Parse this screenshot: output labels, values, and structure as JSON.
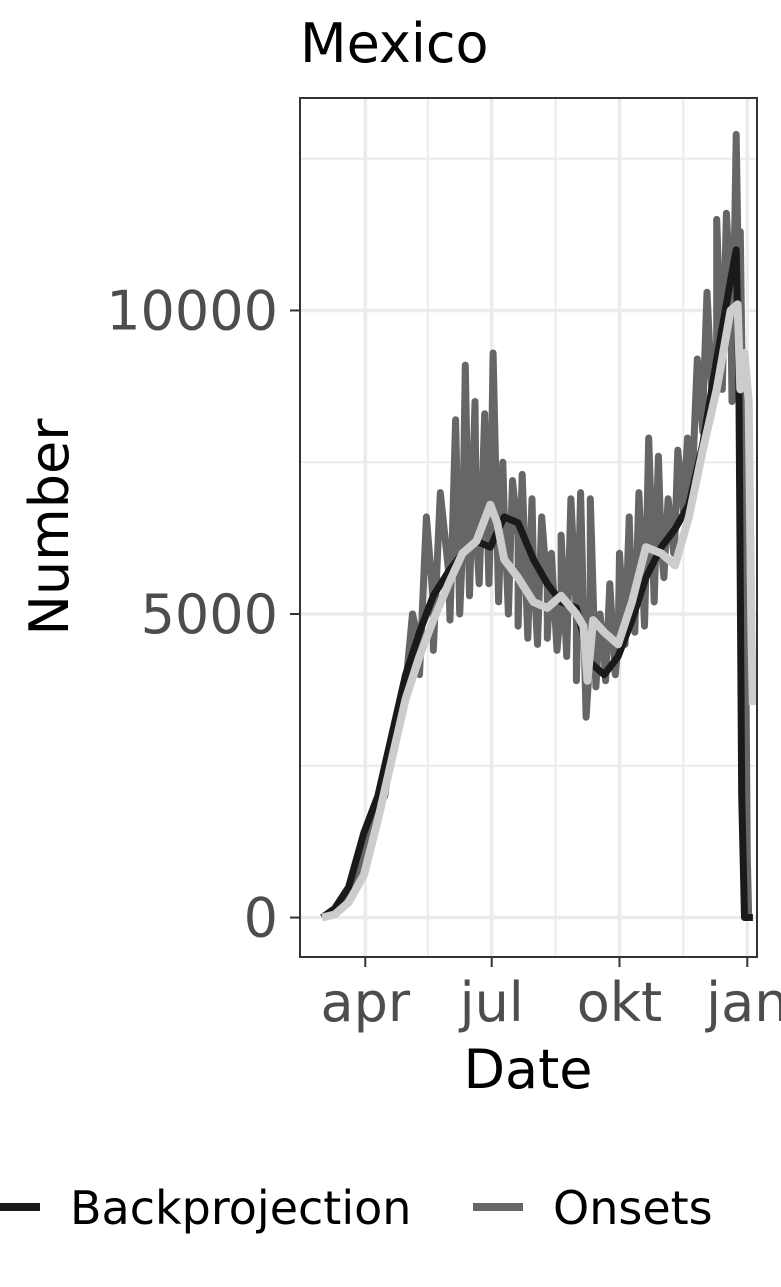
{
  "chart_data": {
    "type": "line",
    "title": "Mexico",
    "xlabel": "Date",
    "ylabel": "Number",
    "x_ticks": [
      {
        "label": "apr",
        "date": "2020-04-01"
      },
      {
        "label": "jul",
        "date": "2020-07-01"
      },
      {
        "label": "okt",
        "date": "2020-10-01"
      },
      {
        "label": "jan",
        "date": "2021-01-01"
      }
    ],
    "xlim": [
      "2020-02-14",
      "2021-01-08"
    ],
    "y_ticks": [
      {
        "label": "0",
        "value": 0
      },
      {
        "label": "5000",
        "value": 5000
      },
      {
        "label": "10000",
        "value": 10000
      }
    ],
    "ylim": [
      -650,
      13500
    ],
    "grid": true,
    "legend_position": "bottom",
    "series": [
      {
        "name": "Backprojection",
        "color": "#1a1a1a",
        "points": [
          [
            "2020-03-01",
            0
          ],
          [
            "2020-03-10",
            150
          ],
          [
            "2020-03-20",
            500
          ],
          [
            "2020-03-31",
            1400
          ],
          [
            "2020-04-10",
            2000
          ],
          [
            "2020-04-20",
            3000
          ],
          [
            "2020-04-30",
            4000
          ],
          [
            "2020-05-10",
            4700
          ],
          [
            "2020-05-20",
            5300
          ],
          [
            "2020-05-31",
            5700
          ],
          [
            "2020-06-10",
            6000
          ],
          [
            "2020-06-20",
            6200
          ],
          [
            "2020-06-30",
            6100
          ],
          [
            "2020-07-10",
            6600
          ],
          [
            "2020-07-20",
            6500
          ],
          [
            "2020-07-31",
            5900
          ],
          [
            "2020-08-10",
            5500
          ],
          [
            "2020-08-20",
            5200
          ],
          [
            "2020-08-31",
            5100
          ],
          [
            "2020-09-10",
            4200
          ],
          [
            "2020-09-20",
            4000
          ],
          [
            "2020-09-30",
            4300
          ],
          [
            "2020-10-10",
            4900
          ],
          [
            "2020-10-20",
            5600
          ],
          [
            "2020-10-31",
            6100
          ],
          [
            "2020-11-10",
            6400
          ],
          [
            "2020-11-20",
            6800
          ],
          [
            "2020-11-30",
            7800
          ],
          [
            "2020-12-10",
            9200
          ],
          [
            "2020-12-20",
            10500
          ],
          [
            "2020-12-24",
            11000
          ],
          [
            "2020-12-26",
            8800
          ],
          [
            "2020-12-28",
            2000
          ],
          [
            "2020-12-30",
            0
          ],
          [
            "2021-01-05",
            0
          ]
        ]
      },
      {
        "name": "Onsets",
        "color": "#666666",
        "points": [
          [
            "2020-03-01",
            0
          ],
          [
            "2020-03-10",
            100
          ],
          [
            "2020-03-20",
            350
          ],
          [
            "2020-03-31",
            1000
          ],
          [
            "2020-04-10",
            1800
          ],
          [
            "2020-04-20",
            2800
          ],
          [
            "2020-04-30",
            3800
          ],
          [
            "2020-05-10",
            4500
          ],
          [
            "2020-05-20",
            5200
          ],
          [
            "2020-05-31",
            5700
          ],
          [
            "2020-06-10",
            6100
          ],
          [
            "2020-06-20",
            6300
          ],
          [
            "2020-06-30",
            6300
          ],
          [
            "2020-07-10",
            6700
          ],
          [
            "2020-07-20",
            6300
          ],
          [
            "2020-07-31",
            5800
          ],
          [
            "2020-08-10",
            5400
          ],
          [
            "2020-08-20",
            5200
          ],
          [
            "2020-08-31",
            5000
          ],
          [
            "2020-09-10",
            4400
          ],
          [
            "2020-09-20",
            4300
          ],
          [
            "2020-09-30",
            4500
          ],
          [
            "2020-10-10",
            5000
          ],
          [
            "2020-10-20",
            5700
          ],
          [
            "2020-10-31",
            6100
          ],
          [
            "2020-11-10",
            6300
          ],
          [
            "2020-11-20",
            6900
          ],
          [
            "2020-11-30",
            8000
          ],
          [
            "2020-12-10",
            9500
          ],
          [
            "2020-12-20",
            10300
          ],
          [
            "2020-12-26",
            10000
          ],
          [
            "2020-12-28",
            9500
          ],
          [
            "2020-12-30",
            7000
          ],
          [
            "2021-01-01",
            1000
          ],
          [
            "2021-01-02",
            0
          ],
          [
            "2021-01-05",
            0
          ]
        ],
        "peaks": [
          [
            "2020-04-15",
            2000
          ],
          [
            "2020-05-05",
            5000
          ],
          [
            "2020-05-15",
            6600
          ],
          [
            "2020-05-25",
            7000
          ],
          [
            "2020-06-05",
            8200
          ],
          [
            "2020-06-12",
            9100
          ],
          [
            "2020-06-19",
            8500
          ],
          [
            "2020-06-26",
            8300
          ],
          [
            "2020-07-02",
            9300
          ],
          [
            "2020-07-09",
            7500
          ],
          [
            "2020-07-16",
            7200
          ],
          [
            "2020-07-23",
            7300
          ],
          [
            "2020-07-30",
            6900
          ],
          [
            "2020-08-06",
            6600
          ],
          [
            "2020-08-13",
            6000
          ],
          [
            "2020-08-20",
            6300
          ],
          [
            "2020-08-27",
            6900
          ],
          [
            "2020-09-03",
            7000
          ],
          [
            "2020-09-10",
            6900
          ],
          [
            "2020-09-17",
            5000
          ],
          [
            "2020-09-24",
            5500
          ],
          [
            "2020-10-01",
            6000
          ],
          [
            "2020-10-08",
            6600
          ],
          [
            "2020-10-15",
            7000
          ],
          [
            "2020-10-22",
            7900
          ],
          [
            "2020-10-29",
            7600
          ],
          [
            "2020-11-05",
            6900
          ],
          [
            "2020-11-12",
            7700
          ],
          [
            "2020-11-19",
            7900
          ],
          [
            "2020-11-26",
            9200
          ],
          [
            "2020-12-03",
            10300
          ],
          [
            "2020-12-10",
            11500
          ],
          [
            "2020-12-17",
            11600
          ],
          [
            "2020-12-24",
            12900
          ],
          [
            "2020-12-27",
            11300
          ]
        ],
        "troughs": [
          [
            "2020-04-20",
            2600
          ],
          [
            "2020-05-10",
            4000
          ],
          [
            "2020-05-20",
            4400
          ],
          [
            "2020-06-01",
            4900
          ],
          [
            "2020-06-08",
            5000
          ],
          [
            "2020-06-15",
            5300
          ],
          [
            "2020-06-22",
            5500
          ],
          [
            "2020-06-29",
            5500
          ],
          [
            "2020-07-06",
            5200
          ],
          [
            "2020-07-13",
            5000
          ],
          [
            "2020-07-20",
            4800
          ],
          [
            "2020-07-27",
            4600
          ],
          [
            "2020-08-03",
            4500
          ],
          [
            "2020-08-10",
            4600
          ],
          [
            "2020-08-17",
            4400
          ],
          [
            "2020-08-24",
            4300
          ],
          [
            "2020-08-31",
            3900
          ],
          [
            "2020-09-07",
            3300
          ],
          [
            "2020-09-14",
            3800
          ],
          [
            "2020-09-21",
            3900
          ],
          [
            "2020-09-28",
            4000
          ],
          [
            "2020-10-05",
            4500
          ],
          [
            "2020-10-12",
            4700
          ],
          [
            "2020-10-19",
            4800
          ],
          [
            "2020-10-26",
            5200
          ],
          [
            "2020-11-02",
            5600
          ],
          [
            "2020-11-09",
            6000
          ],
          [
            "2020-11-16",
            6700
          ],
          [
            "2020-11-23",
            7500
          ],
          [
            "2020-11-30",
            8300
          ],
          [
            "2020-12-07",
            8400
          ],
          [
            "2020-12-14",
            8700
          ],
          [
            "2020-12-21",
            8500
          ]
        ]
      },
      {
        "name": "",
        "color": "#cccccc",
        "points": [
          [
            "2020-03-01",
            0
          ],
          [
            "2020-03-10",
            50
          ],
          [
            "2020-03-20",
            250
          ],
          [
            "2020-03-31",
            700
          ],
          [
            "2020-04-10",
            1600
          ],
          [
            "2020-04-20",
            2600
          ],
          [
            "2020-04-30",
            3600
          ],
          [
            "2020-05-10",
            4300
          ],
          [
            "2020-05-20",
            4900
          ],
          [
            "2020-05-31",
            5500
          ],
          [
            "2020-06-10",
            6000
          ],
          [
            "2020-06-20",
            6200
          ],
          [
            "2020-06-30",
            6800
          ],
          [
            "2020-07-05",
            6500
          ],
          [
            "2020-07-10",
            5900
          ],
          [
            "2020-07-20",
            5600
          ],
          [
            "2020-07-31",
            5200
          ],
          [
            "2020-08-10",
            5100
          ],
          [
            "2020-08-20",
            5300
          ],
          [
            "2020-08-31",
            5000
          ],
          [
            "2020-09-05",
            4800
          ],
          [
            "2020-09-08",
            3900
          ],
          [
            "2020-09-12",
            4900
          ],
          [
            "2020-09-20",
            4700
          ],
          [
            "2020-09-30",
            4500
          ],
          [
            "2020-10-10",
            5200
          ],
          [
            "2020-10-20",
            6100
          ],
          [
            "2020-10-31",
            6000
          ],
          [
            "2020-11-10",
            5800
          ],
          [
            "2020-11-20",
            6600
          ],
          [
            "2020-11-30",
            7700
          ],
          [
            "2020-12-10",
            8700
          ],
          [
            "2020-12-20",
            10000
          ],
          [
            "2020-12-25",
            10100
          ],
          [
            "2020-12-27",
            8700
          ],
          [
            "2020-12-30",
            9300
          ],
          [
            "2021-01-02",
            8500
          ],
          [
            "2021-01-04",
            4700
          ],
          [
            "2021-01-05",
            3500
          ]
        ]
      }
    ]
  }
}
